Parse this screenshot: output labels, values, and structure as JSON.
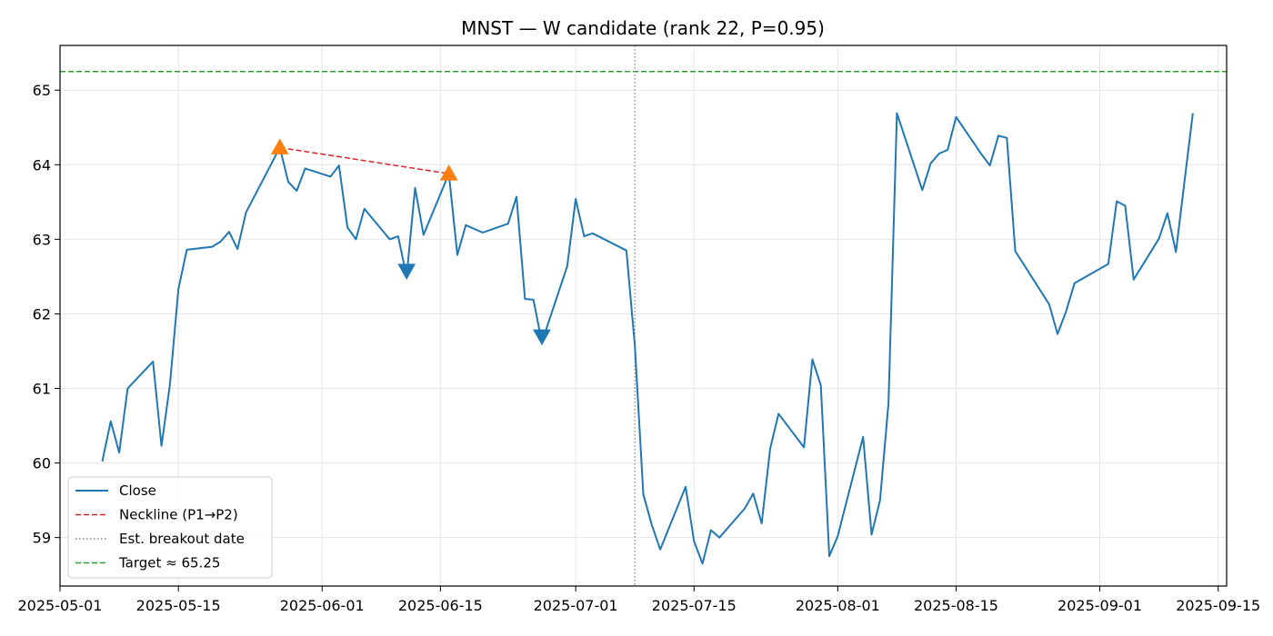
{
  "chart_data": {
    "type": "line",
    "title": "MNST — W candidate (rank 22, P=0.95)",
    "xlabel": "",
    "ylabel": "",
    "xlim": [
      "2025-05-01",
      "2025-09-16"
    ],
    "ylim": [
      58.35,
      65.6
    ],
    "x_ticks": [
      "2025-05-01",
      "2025-05-15",
      "2025-06-01",
      "2025-06-15",
      "2025-07-01",
      "2025-07-15",
      "2025-08-01",
      "2025-08-15",
      "2025-09-01",
      "2025-09-15"
    ],
    "y_ticks": [
      59,
      60,
      61,
      62,
      63,
      64,
      65
    ],
    "grid": true,
    "legend_position": "lower-left",
    "series": [
      {
        "name": "Close",
        "color": "#1f77b4",
        "style": "solid",
        "points": [
          [
            "2025-05-06",
            60.02
          ],
          [
            "2025-05-07",
            60.56
          ],
          [
            "2025-05-08",
            60.14
          ],
          [
            "2025-05-09",
            61.0
          ],
          [
            "2025-05-12",
            61.36
          ],
          [
            "2025-05-13",
            60.23
          ],
          [
            "2025-05-14",
            61.05
          ],
          [
            "2025-05-15",
            62.33
          ],
          [
            "2025-05-16",
            62.86
          ],
          [
            "2025-05-19",
            62.9
          ],
          [
            "2025-05-20",
            62.97
          ],
          [
            "2025-05-21",
            63.1
          ],
          [
            "2025-05-22",
            62.87
          ],
          [
            "2025-05-23",
            63.36
          ],
          [
            "2025-05-27",
            64.23
          ],
          [
            "2025-05-28",
            63.77
          ],
          [
            "2025-05-29",
            63.65
          ],
          [
            "2025-05-30",
            63.95
          ],
          [
            "2025-06-02",
            63.84
          ],
          [
            "2025-06-03",
            63.99
          ],
          [
            "2025-06-04",
            63.16
          ],
          [
            "2025-06-05",
            63.0
          ],
          [
            "2025-06-06",
            63.41
          ],
          [
            "2025-06-09",
            63.0
          ],
          [
            "2025-06-10",
            63.04
          ],
          [
            "2025-06-11",
            62.5
          ],
          [
            "2025-06-12",
            63.69
          ],
          [
            "2025-06-13",
            63.06
          ],
          [
            "2025-06-16",
            63.88
          ],
          [
            "2025-06-17",
            62.79
          ],
          [
            "2025-06-18",
            63.19
          ],
          [
            "2025-06-20",
            63.09
          ],
          [
            "2025-06-23",
            63.21
          ],
          [
            "2025-06-24",
            63.57
          ],
          [
            "2025-06-25",
            62.2
          ],
          [
            "2025-06-26",
            62.19
          ],
          [
            "2025-06-27",
            61.62
          ],
          [
            "2025-06-30",
            62.64
          ],
          [
            "2025-07-01",
            63.54
          ],
          [
            "2025-07-02",
            63.04
          ],
          [
            "2025-07-03",
            63.08
          ],
          [
            "2025-07-07",
            62.85
          ],
          [
            "2025-07-08",
            61.57
          ],
          [
            "2025-07-09",
            59.58
          ],
          [
            "2025-07-10",
            59.17
          ],
          [
            "2025-07-11",
            58.84
          ],
          [
            "2025-07-14",
            59.68
          ],
          [
            "2025-07-15",
            58.95
          ],
          [
            "2025-07-16",
            58.65
          ],
          [
            "2025-07-17",
            59.1
          ],
          [
            "2025-07-18",
            59.0
          ],
          [
            "2025-07-21",
            59.39
          ],
          [
            "2025-07-22",
            59.59
          ],
          [
            "2025-07-23",
            59.19
          ],
          [
            "2025-07-24",
            60.19
          ],
          [
            "2025-07-25",
            60.66
          ],
          [
            "2025-07-28",
            60.21
          ],
          [
            "2025-07-29",
            61.39
          ],
          [
            "2025-07-30",
            61.04
          ],
          [
            "2025-07-31",
            58.75
          ],
          [
            "2025-08-01",
            59.02
          ],
          [
            "2025-08-04",
            60.35
          ],
          [
            "2025-08-05",
            59.04
          ],
          [
            "2025-08-06",
            59.5
          ],
          [
            "2025-08-07",
            60.8
          ],
          [
            "2025-08-08",
            64.69
          ],
          [
            "2025-08-11",
            63.66
          ],
          [
            "2025-08-12",
            64.02
          ],
          [
            "2025-08-13",
            64.15
          ],
          [
            "2025-08-14",
            64.2
          ],
          [
            "2025-08-15",
            64.64
          ],
          [
            "2025-08-18",
            64.14
          ],
          [
            "2025-08-19",
            63.99
          ],
          [
            "2025-08-20",
            64.39
          ],
          [
            "2025-08-21",
            64.36
          ],
          [
            "2025-08-22",
            62.84
          ],
          [
            "2025-08-26",
            62.13
          ],
          [
            "2025-08-27",
            61.73
          ],
          [
            "2025-08-28",
            62.03
          ],
          [
            "2025-08-29",
            62.41
          ],
          [
            "2025-09-02",
            62.67
          ],
          [
            "2025-09-03",
            63.51
          ],
          [
            "2025-09-04",
            63.45
          ],
          [
            "2025-09-05",
            62.46
          ],
          [
            "2025-09-08",
            63.01
          ],
          [
            "2025-09-09",
            63.35
          ],
          [
            "2025-09-10",
            62.83
          ],
          [
            "2025-09-12",
            64.69
          ]
        ]
      },
      {
        "name": "Neckline (P1→P2)",
        "color": "#d62728",
        "style": "dashed",
        "points": [
          [
            "2025-05-27",
            64.23
          ],
          [
            "2025-06-16",
            63.88
          ]
        ]
      }
    ],
    "breakout": {
      "name": "Est. breakout date",
      "date": "2025-07-08",
      "color": "#808080",
      "style": "dotted"
    },
    "target": {
      "name": "Target ≈ 65.25",
      "value": 65.25,
      "color": "#2ca02c",
      "style": "dashed"
    },
    "peak_markers": {
      "color": "#ff7f0e",
      "shape": "triangle-up",
      "points": [
        [
          "2025-05-27",
          64.23
        ],
        [
          "2025-06-16",
          63.88
        ]
      ]
    },
    "trough_markers": {
      "color": "#1f77b4",
      "shape": "triangle-down",
      "points": [
        [
          "2025-06-11",
          62.58
        ],
        [
          "2025-06-27",
          61.7
        ]
      ]
    }
  }
}
